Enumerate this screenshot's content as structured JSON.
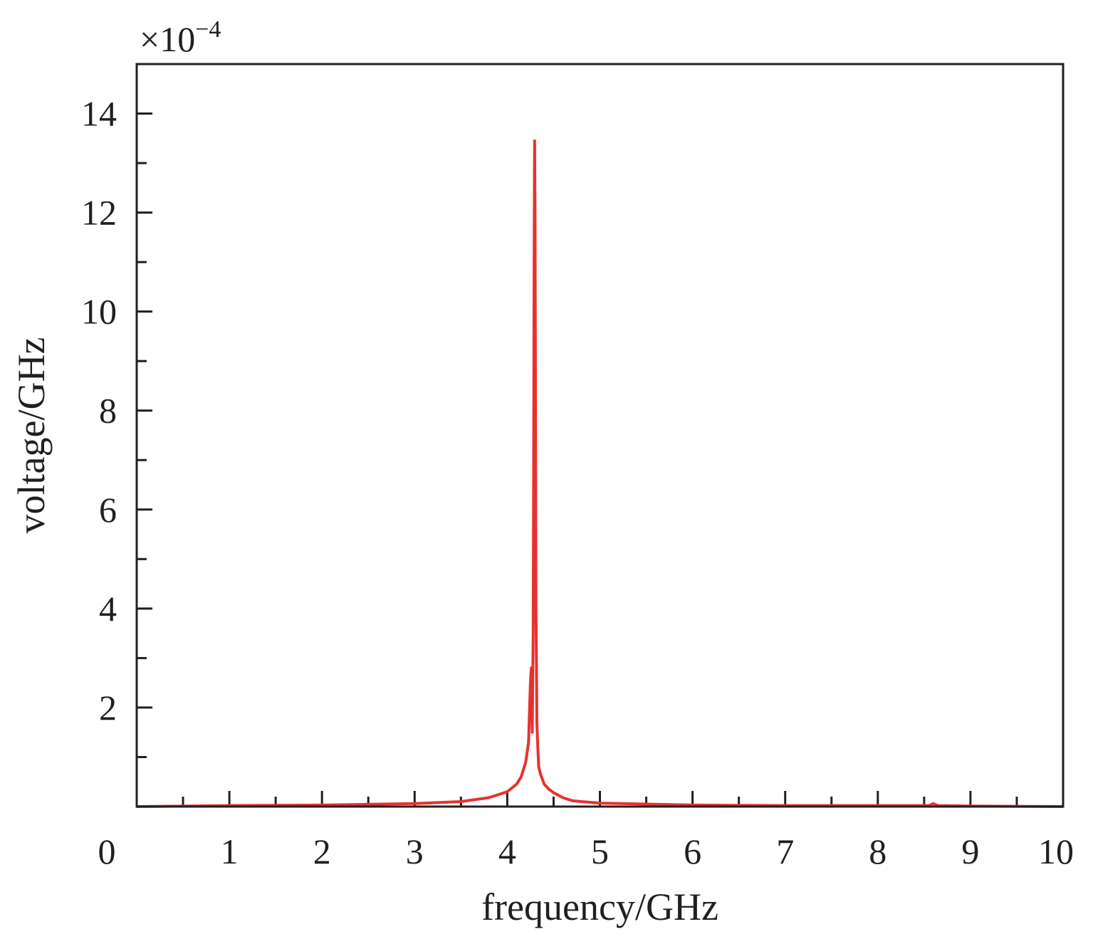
{
  "chart_data": {
    "type": "line",
    "title": "",
    "xlabel": "frequency/GHz",
    "ylabel": "voltage/GHz",
    "y_multiplier_base": "×10",
    "y_multiplier_exponent": "−4",
    "xlim": [
      0,
      10
    ],
    "ylim": [
      0,
      15
    ],
    "x_ticks": [
      0,
      1,
      2,
      3,
      4,
      5,
      6,
      7,
      8,
      9,
      10
    ],
    "x_tick_labels": [
      "0",
      "1",
      "2",
      "3",
      "4",
      "5",
      "6",
      "7",
      "8",
      "9",
      "10"
    ],
    "y_ticks": [
      2,
      4,
      6,
      8,
      10,
      12,
      14
    ],
    "y_tick_labels": [
      "2",
      "4",
      "6",
      "8",
      "10",
      "12",
      "14"
    ],
    "grid": false,
    "line_color": "#e8312f",
    "series": [
      {
        "x": [
          0.0,
          1.0,
          2.0,
          3.0,
          3.5,
          3.8,
          4.0,
          4.1,
          4.15,
          4.2,
          4.23,
          4.25,
          4.26,
          4.27,
          4.28,
          4.285,
          4.29,
          4.295,
          4.3,
          4.305,
          4.31,
          4.315,
          4.32,
          4.33,
          4.34,
          4.36,
          4.38,
          4.4,
          4.45,
          4.5,
          4.6,
          4.7,
          4.8,
          5.0,
          5.5,
          6.0,
          7.0,
          8.0,
          8.55,
          8.6,
          8.65,
          9.0,
          10.0
        ],
        "y": [
          0.0,
          0.02,
          0.03,
          0.06,
          0.1,
          0.18,
          0.3,
          0.45,
          0.6,
          0.9,
          1.3,
          2.5,
          2.8,
          1.5,
          3.5,
          7.0,
          11.0,
          13.45,
          12.0,
          8.0,
          4.0,
          2.9,
          1.7,
          1.2,
          0.8,
          0.65,
          0.55,
          0.45,
          0.35,
          0.28,
          0.18,
          0.12,
          0.1,
          0.07,
          0.05,
          0.03,
          0.02,
          0.02,
          0.02,
          0.06,
          0.02,
          0.01,
          0.0
        ]
      }
    ]
  }
}
